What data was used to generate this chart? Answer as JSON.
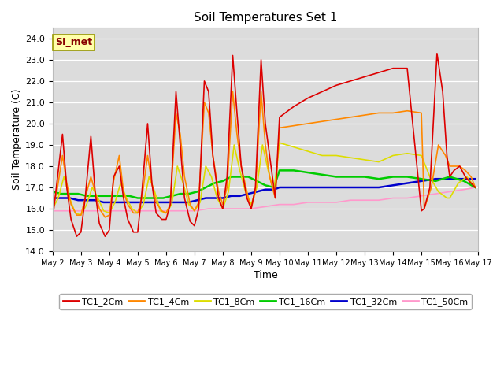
{
  "title": "Soil Temperatures Set 1",
  "xlabel": "Time",
  "ylabel": "Soil Temperature (C)",
  "ylim": [
    14.0,
    24.5
  ],
  "yticks": [
    14.0,
    15.0,
    16.0,
    17.0,
    18.0,
    19.0,
    20.0,
    21.0,
    22.0,
    23.0,
    24.0
  ],
  "background_color": "#dcdcdc",
  "annotation_label": "SI_met",
  "series_colors": {
    "TC1_2Cm": "#dd0000",
    "TC1_4Cm": "#ff8800",
    "TC1_8Cm": "#dddd00",
    "TC1_16Cm": "#00cc00",
    "TC1_32Cm": "#0000cc",
    "TC1_50Cm": "#ff99cc"
  },
  "x_labels": [
    "May 2",
    "May 3",
    "May 4",
    "May 5",
    "May 6",
    "May 7",
    "May 8",
    "May 9",
    "May 10",
    "May 11",
    "May 12",
    "May 13",
    "May 14",
    "May 15",
    "May 16",
    "May 17"
  ],
  "TC1_2Cm_x": [
    2.0,
    2.15,
    2.35,
    2.5,
    2.65,
    2.85,
    3.0,
    3.15,
    3.35,
    3.5,
    3.65,
    3.85,
    4.0,
    4.15,
    4.35,
    4.5,
    4.65,
    4.85,
    5.0,
    5.15,
    5.35,
    5.5,
    5.65,
    5.85,
    6.0,
    6.15,
    6.35,
    6.5,
    6.65,
    6.85,
    7.0,
    7.15,
    7.35,
    7.5,
    7.65,
    7.85,
    8.0,
    8.15,
    8.35,
    8.5,
    8.65,
    8.85,
    9.0,
    9.15,
    9.35,
    9.5,
    9.65,
    9.85,
    10.0,
    10.5,
    11.0,
    11.5,
    12.0,
    12.5,
    13.0,
    13.5,
    14.0,
    14.5,
    15.0,
    15.1,
    15.3,
    15.55,
    15.75,
    15.9,
    16.0,
    16.15,
    16.35,
    16.55,
    16.75,
    16.9
  ],
  "TC1_2Cm_y": [
    15.5,
    17.2,
    19.5,
    17.0,
    15.5,
    14.7,
    14.9,
    16.5,
    19.4,
    16.8,
    15.3,
    14.7,
    15.0,
    17.5,
    18.0,
    16.5,
    15.5,
    14.9,
    14.9,
    16.8,
    20.0,
    17.2,
    15.8,
    15.5,
    15.5,
    16.2,
    21.5,
    19.0,
    16.5,
    15.4,
    15.2,
    16.0,
    22.0,
    21.5,
    18.5,
    16.5,
    16.0,
    17.5,
    23.2,
    20.5,
    18.0,
    16.5,
    16.0,
    17.0,
    23.0,
    20.0,
    18.5,
    16.5,
    20.3,
    20.8,
    21.2,
    21.5,
    21.8,
    22.0,
    22.2,
    22.4,
    22.6,
    22.6,
    15.9,
    16.0,
    17.0,
    23.3,
    21.5,
    18.5,
    17.5,
    17.8,
    18.0,
    17.5,
    17.2,
    17.0
  ],
  "TC1_4Cm_x": [
    2.0,
    2.15,
    2.35,
    2.5,
    2.65,
    2.85,
    3.0,
    3.15,
    3.35,
    3.5,
    3.65,
    3.85,
    4.0,
    4.15,
    4.35,
    4.5,
    4.65,
    4.85,
    5.0,
    5.15,
    5.35,
    5.5,
    5.65,
    5.85,
    6.0,
    6.15,
    6.35,
    6.5,
    6.65,
    6.85,
    7.0,
    7.15,
    7.35,
    7.5,
    7.65,
    7.85,
    8.0,
    8.15,
    8.35,
    8.5,
    8.65,
    8.85,
    9.0,
    9.15,
    9.35,
    9.5,
    9.65,
    9.85,
    10.0,
    10.5,
    11.0,
    11.5,
    12.0,
    12.5,
    13.0,
    13.5,
    14.0,
    14.5,
    15.0,
    15.1,
    15.35,
    15.6,
    15.85,
    16.0,
    16.15,
    16.35,
    16.55,
    16.75,
    16.9
  ],
  "TC1_4Cm_y": [
    16.0,
    16.8,
    18.5,
    17.2,
    16.2,
    15.7,
    15.7,
    16.5,
    17.5,
    16.8,
    16.0,
    15.6,
    15.7,
    17.3,
    18.5,
    16.8,
    16.2,
    15.8,
    15.8,
    16.5,
    18.5,
    17.2,
    16.3,
    15.9,
    15.8,
    16.2,
    20.5,
    19.5,
    17.5,
    16.2,
    15.9,
    16.3,
    21.0,
    20.5,
    18.5,
    16.8,
    16.2,
    17.0,
    21.5,
    19.5,
    18.0,
    16.8,
    16.0,
    16.8,
    21.5,
    19.0,
    17.5,
    16.5,
    19.8,
    19.9,
    20.0,
    20.1,
    20.2,
    20.3,
    20.4,
    20.5,
    20.5,
    20.6,
    20.5,
    16.0,
    17.0,
    19.0,
    18.5,
    18.0,
    18.0,
    18.0,
    17.8,
    17.5,
    17.0
  ],
  "TC1_8Cm_x": [
    2.0,
    2.2,
    2.4,
    2.6,
    2.8,
    3.0,
    3.2,
    3.4,
    3.6,
    3.8,
    4.0,
    4.2,
    4.4,
    4.6,
    4.8,
    5.0,
    5.2,
    5.4,
    5.6,
    5.8,
    6.0,
    6.2,
    6.4,
    6.6,
    6.8,
    7.0,
    7.2,
    7.4,
    7.6,
    7.8,
    8.0,
    8.2,
    8.4,
    8.6,
    8.8,
    9.0,
    9.2,
    9.4,
    9.6,
    9.8,
    10.0,
    10.5,
    11.0,
    11.5,
    12.0,
    12.5,
    13.0,
    13.5,
    14.0,
    14.5,
    15.0,
    15.3,
    15.6,
    15.9,
    16.0,
    16.3,
    16.6,
    16.9
  ],
  "TC1_8Cm_y": [
    16.0,
    16.5,
    17.5,
    16.5,
    15.8,
    15.7,
    16.2,
    17.0,
    16.5,
    15.9,
    15.8,
    16.3,
    17.2,
    16.5,
    16.0,
    15.8,
    16.2,
    17.5,
    16.8,
    15.9,
    15.8,
    16.2,
    18.0,
    17.2,
    16.2,
    15.9,
    16.3,
    18.0,
    17.5,
    16.5,
    16.0,
    16.8,
    19.0,
    17.8,
    16.8,
    16.2,
    17.0,
    19.0,
    17.8,
    16.8,
    19.1,
    18.9,
    18.7,
    18.5,
    18.5,
    18.4,
    18.3,
    18.2,
    18.5,
    18.6,
    18.5,
    17.5,
    16.8,
    16.5,
    16.5,
    17.2,
    17.5,
    17.0
  ],
  "TC1_16Cm_x": [
    2.0,
    2.3,
    2.6,
    2.9,
    3.2,
    3.5,
    3.8,
    4.1,
    4.4,
    4.7,
    5.0,
    5.3,
    5.6,
    5.9,
    6.2,
    6.5,
    6.8,
    7.1,
    7.4,
    7.7,
    8.0,
    8.3,
    8.6,
    8.9,
    9.2,
    9.5,
    9.8,
    10.0,
    10.5,
    11.0,
    11.5,
    12.0,
    12.5,
    13.0,
    13.5,
    14.0,
    14.5,
    15.0,
    15.5,
    16.0,
    16.5,
    16.9
  ],
  "TC1_16Cm_y": [
    16.8,
    16.7,
    16.7,
    16.7,
    16.6,
    16.6,
    16.6,
    16.6,
    16.6,
    16.6,
    16.5,
    16.5,
    16.5,
    16.5,
    16.6,
    16.7,
    16.7,
    16.8,
    17.0,
    17.2,
    17.3,
    17.5,
    17.5,
    17.5,
    17.3,
    17.1,
    17.0,
    17.8,
    17.8,
    17.7,
    17.6,
    17.5,
    17.5,
    17.5,
    17.4,
    17.5,
    17.5,
    17.4,
    17.3,
    17.5,
    17.3,
    17.0
  ],
  "TC1_32Cm_x": [
    2.0,
    2.3,
    2.6,
    2.9,
    3.2,
    3.5,
    3.8,
    4.1,
    4.4,
    4.7,
    5.0,
    5.3,
    5.6,
    5.9,
    6.2,
    6.5,
    6.8,
    7.1,
    7.4,
    7.7,
    8.0,
    8.3,
    8.6,
    8.9,
    9.2,
    9.5,
    9.8,
    10.0,
    10.5,
    11.0,
    11.5,
    12.0,
    12.5,
    13.0,
    13.5,
    14.0,
    14.5,
    15.0,
    15.5,
    16.0,
    16.5,
    16.9
  ],
  "TC1_32Cm_y": [
    16.5,
    16.5,
    16.5,
    16.4,
    16.4,
    16.4,
    16.3,
    16.3,
    16.3,
    16.3,
    16.3,
    16.3,
    16.3,
    16.3,
    16.3,
    16.3,
    16.3,
    16.4,
    16.5,
    16.5,
    16.5,
    16.6,
    16.6,
    16.7,
    16.8,
    16.9,
    16.9,
    17.0,
    17.0,
    17.0,
    17.0,
    17.0,
    17.0,
    17.0,
    17.0,
    17.1,
    17.2,
    17.3,
    17.4,
    17.4,
    17.4,
    17.4
  ],
  "TC1_50Cm_x": [
    2.0,
    2.5,
    3.0,
    3.5,
    4.0,
    4.5,
    5.0,
    5.5,
    6.0,
    6.5,
    7.0,
    7.5,
    8.0,
    8.5,
    9.0,
    9.5,
    10.0,
    10.5,
    11.0,
    11.5,
    12.0,
    12.5,
    13.0,
    13.5,
    14.0,
    14.5,
    15.0,
    15.5,
    16.0,
    16.5,
    16.9
  ],
  "TC1_50Cm_y": [
    15.9,
    15.9,
    15.9,
    15.9,
    15.9,
    15.9,
    15.9,
    15.9,
    15.9,
    15.9,
    15.9,
    16.0,
    16.0,
    16.0,
    16.0,
    16.1,
    16.2,
    16.2,
    16.3,
    16.3,
    16.3,
    16.4,
    16.4,
    16.4,
    16.5,
    16.5,
    16.6,
    16.7,
    16.8,
    16.9,
    17.0
  ]
}
